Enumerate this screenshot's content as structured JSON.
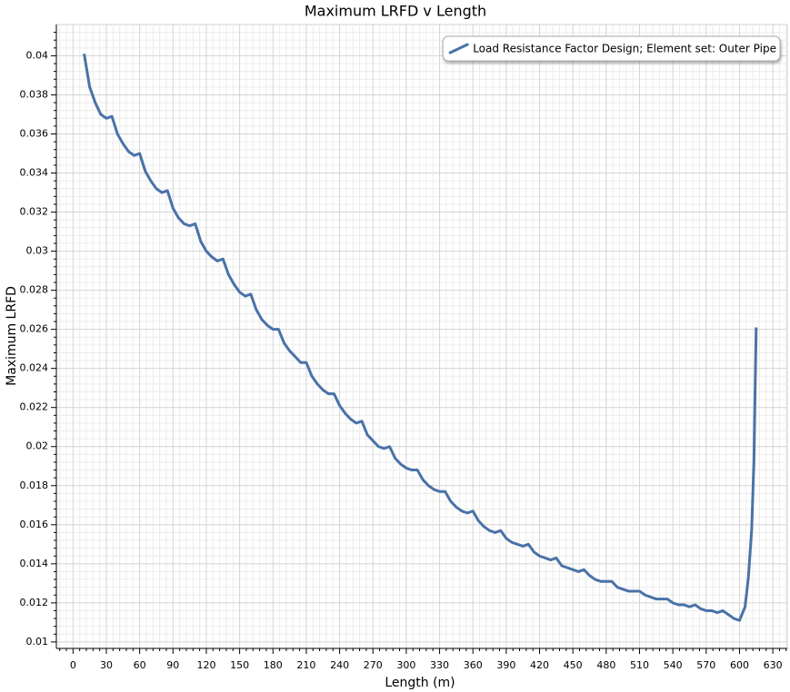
{
  "chart_data": {
    "type": "line",
    "title": "Maximum LRFD v Length",
    "xlabel": "Length (m)",
    "ylabel": "Maximum LRFD",
    "xlim": [
      -15,
      643
    ],
    "ylim": [
      0.00967,
      0.0416
    ],
    "xticks": [
      0,
      30,
      60,
      90,
      120,
      150,
      180,
      210,
      240,
      270,
      300,
      330,
      360,
      390,
      420,
      450,
      480,
      510,
      540,
      570,
      600,
      630
    ],
    "yticks": [
      0.01,
      0.012,
      0.014,
      0.016,
      0.018,
      0.02,
      0.022,
      0.024,
      0.026,
      0.028,
      0.03,
      0.032,
      0.034,
      0.036,
      0.038,
      0.04
    ],
    "grid": true,
    "legend": "upper right",
    "x": [
      10,
      15,
      20,
      25,
      30,
      35,
      40,
      45,
      50,
      55,
      60,
      65,
      70,
      75,
      80,
      85,
      90,
      95,
      100,
      105,
      110,
      115,
      120,
      125,
      130,
      135,
      140,
      145,
      150,
      155,
      160,
      165,
      170,
      175,
      180,
      185,
      190,
      195,
      200,
      205,
      210,
      215,
      220,
      225,
      230,
      235,
      240,
      245,
      250,
      255,
      260,
      265,
      270,
      275,
      280,
      285,
      290,
      295,
      300,
      305,
      310,
      315,
      320,
      325,
      330,
      335,
      340,
      345,
      350,
      355,
      360,
      365,
      370,
      375,
      380,
      385,
      390,
      395,
      400,
      405,
      410,
      415,
      420,
      425,
      430,
      435,
      440,
      445,
      450,
      455,
      460,
      465,
      470,
      475,
      480,
      485,
      490,
      495,
      500,
      505,
      510,
      515,
      520,
      525,
      530,
      535,
      540,
      545,
      550,
      555,
      560,
      565,
      570,
      575,
      580,
      585,
      590,
      595,
      600,
      605,
      608,
      611,
      613,
      615
    ],
    "series": [
      {
        "name": "Load Resistance Factor Design; Element set: Outer Pipe",
        "color": "#4a72a8",
        "values": [
          0.0401,
          0.0384,
          0.0376,
          0.037,
          0.0368,
          0.0369,
          0.036,
          0.0355,
          0.0351,
          0.0349,
          0.035,
          0.0341,
          0.0336,
          0.0332,
          0.033,
          0.0331,
          0.0322,
          0.0317,
          0.0314,
          0.0313,
          0.0314,
          0.0305,
          0.03,
          0.0297,
          0.0295,
          0.0296,
          0.0288,
          0.0283,
          0.0279,
          0.0277,
          0.0278,
          0.027,
          0.0265,
          0.0262,
          0.026,
          0.026,
          0.0253,
          0.0249,
          0.0246,
          0.0243,
          0.0243,
          0.0236,
          0.0232,
          0.0229,
          0.0227,
          0.0227,
          0.0221,
          0.0217,
          0.0214,
          0.0212,
          0.0213,
          0.0206,
          0.0203,
          0.02,
          0.0199,
          0.02,
          0.0194,
          0.0191,
          0.0189,
          0.0188,
          0.0188,
          0.0183,
          0.018,
          0.0178,
          0.0177,
          0.0177,
          0.0172,
          0.0169,
          0.0167,
          0.0166,
          0.0167,
          0.0162,
          0.0159,
          0.0157,
          0.0156,
          0.0157,
          0.0153,
          0.0151,
          0.015,
          0.0149,
          0.015,
          0.0146,
          0.0144,
          0.0143,
          0.0142,
          0.0143,
          0.0139,
          0.0138,
          0.0137,
          0.0136,
          0.0137,
          0.0134,
          0.0132,
          0.0131,
          0.0131,
          0.0131,
          0.0128,
          0.0127,
          0.0126,
          0.0126,
          0.0126,
          0.0124,
          0.0123,
          0.0122,
          0.0122,
          0.0122,
          0.012,
          0.0119,
          0.0119,
          0.0118,
          0.0119,
          0.0117,
          0.0116,
          0.0116,
          0.0115,
          0.0116,
          0.0114,
          0.0112,
          0.0111,
          0.0118,
          0.0133,
          0.0158,
          0.0193,
          0.0261
        ]
      }
    ]
  }
}
